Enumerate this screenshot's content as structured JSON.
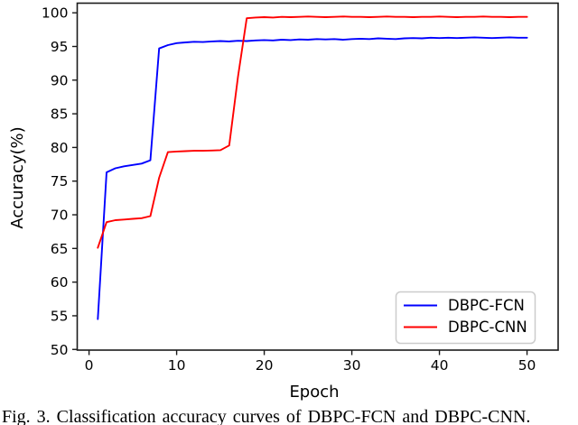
{
  "figure": {
    "caption": "Fig. 3. Classification accuracy curves of DBPC-FCN and DBPC-CNN."
  },
  "chart_data": {
    "type": "line",
    "title": "",
    "xlabel": "Epoch",
    "ylabel": "Accuracy(%)",
    "xlim": [
      -1.35,
      53.55
    ],
    "ylim": [
      49.9,
      101.5
    ],
    "x_ticks": [
      0,
      10,
      20,
      30,
      40,
      50
    ],
    "y_ticks": [
      50,
      55,
      60,
      65,
      70,
      75,
      80,
      85,
      90,
      95,
      100
    ],
    "grid": false,
    "legend_position": "lower right",
    "x": [
      1,
      2,
      3,
      4,
      5,
      6,
      7,
      8,
      9,
      10,
      11,
      12,
      13,
      14,
      15,
      16,
      17,
      18,
      19,
      20,
      21,
      22,
      23,
      24,
      25,
      26,
      27,
      28,
      29,
      30,
      31,
      32,
      33,
      34,
      35,
      36,
      37,
      38,
      39,
      40,
      41,
      42,
      43,
      44,
      45,
      46,
      47,
      48,
      49,
      50
    ],
    "series": [
      {
        "name": "DBPC-FCN",
        "color": "#0000ff",
        "values": [
          54.5,
          76.3,
          76.9,
          77.2,
          77.4,
          77.6,
          78.1,
          94.7,
          95.2,
          95.5,
          95.6,
          95.7,
          95.65,
          95.75,
          95.8,
          95.75,
          95.85,
          95.8,
          95.9,
          95.95,
          95.9,
          96.0,
          95.95,
          96.05,
          96.0,
          96.1,
          96.05,
          96.1,
          96.0,
          96.1,
          96.15,
          96.1,
          96.2,
          96.15,
          96.1,
          96.2,
          96.25,
          96.2,
          96.3,
          96.25,
          96.3,
          96.25,
          96.3,
          96.35,
          96.3,
          96.25,
          96.3,
          96.35,
          96.3,
          96.3
        ]
      },
      {
        "name": "DBPC-CNN",
        "color": "#ff0000",
        "values": [
          65.1,
          68.9,
          69.2,
          69.3,
          69.4,
          69.5,
          69.8,
          75.5,
          79.3,
          79.4,
          79.45,
          79.5,
          79.5,
          79.55,
          79.6,
          80.3,
          90.5,
          99.2,
          99.3,
          99.35,
          99.3,
          99.4,
          99.35,
          99.4,
          99.45,
          99.4,
          99.35,
          99.4,
          99.45,
          99.4,
          99.4,
          99.35,
          99.4,
          99.45,
          99.4,
          99.4,
          99.35,
          99.4,
          99.4,
          99.45,
          99.4,
          99.35,
          99.4,
          99.4,
          99.45,
          99.4,
          99.4,
          99.35,
          99.4,
          99.4
        ]
      }
    ]
  }
}
